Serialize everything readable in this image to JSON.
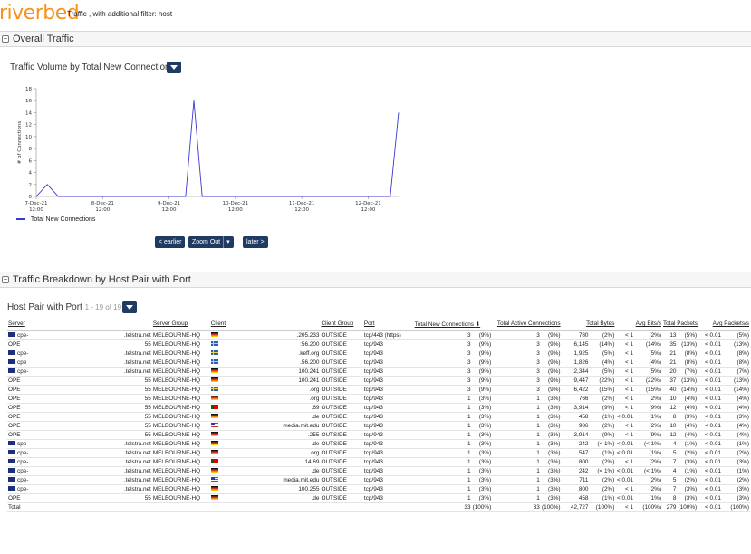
{
  "header": {
    "logo": "riverbed",
    "title": "Traffic , with additional filter: host"
  },
  "section1": {
    "toggle": "−",
    "title": "Overall Traffic"
  },
  "chart_panel": {
    "title": "Traffic Volume by Total New Connections",
    "nav": {
      "earlier": "< earlier",
      "zoom_out": "Zoom Out",
      "later": "later >"
    }
  },
  "chart_data": {
    "type": "line",
    "ylabel": "# of Connections",
    "ylim": [
      0,
      18
    ],
    "yticks": [
      0,
      2,
      4,
      6,
      8,
      10,
      12,
      14,
      16,
      18
    ],
    "xlim": [
      "2021-12-07 12:00",
      "2021-12-12 23:00"
    ],
    "xticks": [
      {
        "value": "2021-12-07 12:00",
        "line1": "7-Dec-21",
        "line2": "12:00"
      },
      {
        "value": "2021-12-08 12:00",
        "line1": "8-Dec-21",
        "line2": "12:00"
      },
      {
        "value": "2021-12-09 12:00",
        "line1": "9-Dec-21",
        "line2": "12:00"
      },
      {
        "value": "2021-12-10 12:00",
        "line1": "10-Dec-21",
        "line2": "12:00"
      },
      {
        "value": "2021-12-11 12:00",
        "line1": "11-Dec-21",
        "line2": "12:00"
      },
      {
        "value": "2021-12-12 12:00",
        "line1": "12-Dec-21",
        "line2": "12:00"
      }
    ],
    "series": [
      {
        "name": "Total New Connections",
        "color": "#3a3acc",
        "points": [
          {
            "x": "2021-12-07 12:00",
            "y": 0
          },
          {
            "x": "2021-12-07 16:00",
            "y": 2
          },
          {
            "x": "2021-12-07 20:00",
            "y": 0
          },
          {
            "x": "2021-12-09 18:00",
            "y": 0
          },
          {
            "x": "2021-12-09 21:00",
            "y": 16
          },
          {
            "x": "2021-12-10 00:00",
            "y": 0
          },
          {
            "x": "2021-12-12 20:00",
            "y": 0
          },
          {
            "x": "2021-12-12 23:00",
            "y": 14
          }
        ]
      }
    ],
    "legend": "bottom-left",
    "grid": false
  },
  "section2": {
    "toggle": "−",
    "title": "Traffic Breakdown by Host Pair with Port"
  },
  "table_panel": {
    "title": "Host Pair with Port",
    "count": "1 - 19 of 19"
  },
  "table": {
    "columns": [
      "Server",
      "Server Group",
      "Client",
      "Client Group",
      "Port",
      "Total New Connections",
      "Total Active Connections",
      "Total Bytes",
      "Avg Bits/s",
      "Total Packets",
      "Avg Packets/s"
    ],
    "rows": [
      {
        "srv_flag": "au",
        "srv_a": "cpe-",
        "srv_b": ".telstra.net",
        "sgroup": "MELBOURNE-HQ",
        "cli_flag": "de",
        "cli": ".205.233",
        "cgroup": "OUTSIDE",
        "port": "tcp/443 (https)",
        "tnc": "3",
        "tnc_p": "(9%)",
        "tac": "3",
        "tac_p": "(9%)",
        "tb": "780",
        "tb_p": "(2%)",
        "abs": "< 1",
        "abs_p": "(2%)",
        "tp": "13",
        "tp_p": "(5%)",
        "aps": "< 0.01",
        "aps_p": "(5%)"
      },
      {
        "srv_flag": "",
        "srv_a": "OPE",
        "srv_b": "55",
        "sgroup": "MELBOURNE-HQ",
        "cli_flag": "se",
        "cli": ":56.200",
        "cgroup": "OUTSIDE",
        "port": "tcp/943",
        "tnc": "3",
        "tnc_p": "(9%)",
        "tac": "3",
        "tac_p": "(9%)",
        "tb": "6,145",
        "tb_p": "(14%)",
        "abs": "< 1",
        "abs_p": "(14%)",
        "tp": "35",
        "tp_p": "(13%)",
        "aps": "< 0.01",
        "aps_p": "(13%)"
      },
      {
        "srv_flag": "au",
        "srv_a": "cpe-",
        "srv_b": ".telstra.net",
        "sgroup": "MELBOURNE-HQ",
        "cli_flag": "se",
        "cli": ".keff.org",
        "cgroup": "OUTSIDE",
        "port": "tcp/943",
        "tnc": "3",
        "tnc_p": "(9%)",
        "tac": "3",
        "tac_p": "(9%)",
        "tb": "1,925",
        "tb_p": "(5%)",
        "abs": "< 1",
        "abs_p": "(5%)",
        "tp": "21",
        "tp_p": "(8%)",
        "aps": "< 0.01",
        "aps_p": "(8%)"
      },
      {
        "srv_flag": "au",
        "srv_a": "cpe",
        "srv_b": ".telstra.net",
        "sgroup": "MELBOURNE-HQ",
        "cli_flag": "se",
        "cli": ".56.200",
        "cgroup": "OUTSIDE",
        "port": "tcp/943",
        "tnc": "3",
        "tnc_p": "(9%)",
        "tac": "3",
        "tac_p": "(9%)",
        "tb": "1,826",
        "tb_p": "(4%)",
        "abs": "< 1",
        "abs_p": "(4%)",
        "tp": "21",
        "tp_p": "(8%)",
        "aps": "< 0.01",
        "aps_p": "(8%)"
      },
      {
        "srv_flag": "au",
        "srv_a": "cpe-",
        "srv_b": ".telstra.net",
        "sgroup": "MELBOURNE-HQ",
        "cli_flag": "de",
        "cli": "100.241",
        "cgroup": "OUTSIDE",
        "port": "tcp/943",
        "tnc": "3",
        "tnc_p": "(9%)",
        "tac": "3",
        "tac_p": "(9%)",
        "tb": "2,344",
        "tb_p": "(5%)",
        "abs": "< 1",
        "abs_p": "(5%)",
        "tp": "20",
        "tp_p": "(7%)",
        "aps": "< 0.01",
        "aps_p": "(7%)"
      },
      {
        "srv_flag": "",
        "srv_a": "OPE",
        "srv_b": "55",
        "sgroup": "MELBOURNE-HQ",
        "cli_flag": "de",
        "cli": "100.241",
        "cgroup": "OUTSIDE",
        "port": "tcp/943",
        "tnc": "3",
        "tnc_p": "(9%)",
        "tac": "3",
        "tac_p": "(9%)",
        "tb": "9,447",
        "tb_p": "(22%)",
        "abs": "< 1",
        "abs_p": "(22%)",
        "tp": "37",
        "tp_p": "(13%)",
        "aps": "< 0.01",
        "aps_p": "(13%)"
      },
      {
        "srv_flag": "",
        "srv_a": "OPE",
        "srv_b": "55",
        "sgroup": "MELBOURNE-HQ",
        "cli_flag": "se",
        "cli": ".org",
        "cgroup": "OUTSIDE",
        "port": "tcp/943",
        "tnc": "3",
        "tnc_p": "(9%)",
        "tac": "3",
        "tac_p": "(9%)",
        "tb": "6,422",
        "tb_p": "(15%)",
        "abs": "< 1",
        "abs_p": "(15%)",
        "tp": "40",
        "tp_p": "(14%)",
        "aps": "< 0.01",
        "aps_p": "(14%)"
      },
      {
        "srv_flag": "",
        "srv_a": "OPE",
        "srv_b": "55",
        "sgroup": "MELBOURNE-HQ",
        "cli_flag": "de",
        "cli": ".org",
        "cgroup": "OUTSIDE",
        "port": "tcp/943",
        "tnc": "1",
        "tnc_p": "(3%)",
        "tac": "1",
        "tac_p": "(3%)",
        "tb": "766",
        "tb_p": "(2%)",
        "abs": "< 1",
        "abs_p": "(2%)",
        "tp": "10",
        "tp_p": "(4%)",
        "aps": "< 0.01",
        "aps_p": "(4%)"
      },
      {
        "srv_flag": "",
        "srv_a": "OPE",
        "srv_b": "55",
        "sgroup": "MELBOURNE-HQ",
        "cli_flag": "pt",
        "cli": ".69",
        "cgroup": "OUTSIDE",
        "port": "tcp/943",
        "tnc": "1",
        "tnc_p": "(3%)",
        "tac": "1",
        "tac_p": "(3%)",
        "tb": "3,914",
        "tb_p": "(9%)",
        "abs": "< 1",
        "abs_p": "(9%)",
        "tp": "12",
        "tp_p": "(4%)",
        "aps": "< 0.01",
        "aps_p": "(4%)"
      },
      {
        "srv_flag": "",
        "srv_a": "OPE",
        "srv_b": "55",
        "sgroup": "MELBOURNE-HQ",
        "cli_flag": "de",
        "cli": ".de",
        "cgroup": "OUTSIDE",
        "port": "tcp/943",
        "tnc": "1",
        "tnc_p": "(3%)",
        "tac": "1",
        "tac_p": "(3%)",
        "tb": "458",
        "tb_p": "(1%)",
        "abs": "< 0.01",
        "abs_p": "(1%)",
        "tp": "8",
        "tp_p": "(3%)",
        "aps": "< 0.01",
        "aps_p": "(3%)"
      },
      {
        "srv_flag": "",
        "srv_a": "OPE",
        "srv_b": "55",
        "sgroup": "MELBOURNE-HQ",
        "cli_flag": "us",
        "cli": "media.mit.edu",
        "cgroup": "OUTSIDE",
        "port": "tcp/943",
        "tnc": "1",
        "tnc_p": "(3%)",
        "tac": "1",
        "tac_p": "(3%)",
        "tb": "986",
        "tb_p": "(2%)",
        "abs": "< 1",
        "abs_p": "(2%)",
        "tp": "10",
        "tp_p": "(4%)",
        "aps": "< 0.01",
        "aps_p": "(4%)"
      },
      {
        "srv_flag": "",
        "srv_a": "OPE",
        "srv_b": "55",
        "sgroup": "MELBOURNE-HQ",
        "cli_flag": "de",
        "cli": ".255",
        "cgroup": "OUTSIDE",
        "port": "tcp/943",
        "tnc": "1",
        "tnc_p": "(3%)",
        "tac": "1",
        "tac_p": "(3%)",
        "tb": "3,914",
        "tb_p": "(9%)",
        "abs": "< 1",
        "abs_p": "(9%)",
        "tp": "12",
        "tp_p": "(4%)",
        "aps": "< 0.01",
        "aps_p": "(4%)"
      },
      {
        "srv_flag": "au",
        "srv_a": "cpe-",
        "srv_b": ".telstra.net",
        "sgroup": "MELBOURNE-HQ",
        "cli_flag": "de",
        "cli": ".de",
        "cgroup": "OUTSIDE",
        "port": "tcp/943",
        "tnc": "1",
        "tnc_p": "(3%)",
        "tac": "1",
        "tac_p": "(3%)",
        "tb": "242",
        "tb_p": "(< 1%)",
        "abs": "< 0.01",
        "abs_p": "(< 1%)",
        "tp": "4",
        "tp_p": "(1%)",
        "aps": "< 0.01",
        "aps_p": "(1%)"
      },
      {
        "srv_flag": "au",
        "srv_a": "cpe-",
        "srv_b": ".telstra.net",
        "sgroup": "MELBOURNE-HQ",
        "cli_flag": "de",
        "cli": "org",
        "cgroup": "OUTSIDE",
        "port": "tcp/943",
        "tnc": "1",
        "tnc_p": "(3%)",
        "tac": "1",
        "tac_p": "(3%)",
        "tb": "547",
        "tb_p": "(1%)",
        "abs": "< 0.01",
        "abs_p": "(1%)",
        "tp": "5",
        "tp_p": "(2%)",
        "aps": "< 0.01",
        "aps_p": "(2%)"
      },
      {
        "srv_flag": "au",
        "srv_a": "cpe-",
        "srv_b": ".telstra.net",
        "sgroup": "MELBOURNE-HQ",
        "cli_flag": "pt",
        "cli": "14.69",
        "cgroup": "OUTSIDE",
        "port": "tcp/943",
        "tnc": "1",
        "tnc_p": "(3%)",
        "tac": "1",
        "tac_p": "(3%)",
        "tb": "800",
        "tb_p": "(2%)",
        "abs": "< 1",
        "abs_p": "(2%)",
        "tp": "7",
        "tp_p": "(3%)",
        "aps": "< 0.01",
        "aps_p": "(3%)"
      },
      {
        "srv_flag": "au",
        "srv_a": "cpe-",
        "srv_b": ".telstra.net",
        "sgroup": "MELBOURNE-HQ",
        "cli_flag": "de",
        "cli": ".de",
        "cgroup": "OUTSIDE",
        "port": "tcp/943",
        "tnc": "1",
        "tnc_p": "(3%)",
        "tac": "1",
        "tac_p": "(3%)",
        "tb": "242",
        "tb_p": "(< 1%)",
        "abs": "< 0.01",
        "abs_p": "(< 1%)",
        "tp": "4",
        "tp_p": "(1%)",
        "aps": "< 0.01",
        "aps_p": "(1%)"
      },
      {
        "srv_flag": "au",
        "srv_a": "cpe-",
        "srv_b": ".telstra.net",
        "sgroup": "MELBOURNE-HQ",
        "cli_flag": "us",
        "cli": "media.mit.edu",
        "cgroup": "OUTSIDE",
        "port": "tcp/943",
        "tnc": "1",
        "tnc_p": "(3%)",
        "tac": "1",
        "tac_p": "(3%)",
        "tb": "711",
        "tb_p": "(2%)",
        "abs": "< 0.01",
        "abs_p": "(2%)",
        "tp": "5",
        "tp_p": "(2%)",
        "aps": "< 0.01",
        "aps_p": "(2%)"
      },
      {
        "srv_flag": "au",
        "srv_a": "cpe-",
        "srv_b": ".telstra.net",
        "sgroup": "MELBOURNE-HQ",
        "cli_flag": "de",
        "cli": "100.255",
        "cgroup": "OUTSIDE",
        "port": "tcp/943",
        "tnc": "1",
        "tnc_p": "(3%)",
        "tac": "1",
        "tac_p": "(3%)",
        "tb": "800",
        "tb_p": "(2%)",
        "abs": "< 1",
        "abs_p": "(2%)",
        "tp": "7",
        "tp_p": "(3%)",
        "aps": "< 0.01",
        "aps_p": "(3%)"
      },
      {
        "srv_flag": "",
        "srv_a": "OPE",
        "srv_b": "55",
        "sgroup": "MELBOURNE-HQ",
        "cli_flag": "de",
        "cli": ".de",
        "cgroup": "OUTSIDE",
        "port": "tcp/943",
        "tnc": "1",
        "tnc_p": "(3%)",
        "tac": "1",
        "tac_p": "(3%)",
        "tb": "458",
        "tb_p": "(1%)",
        "abs": "< 0.01",
        "abs_p": "(1%)",
        "tp": "8",
        "tp_p": "(3%)",
        "aps": "< 0.01",
        "aps_p": "(3%)"
      }
    ],
    "total": {
      "label": "Total",
      "tnc": "33",
      "tnc_p": "(100%)",
      "tac": "33",
      "tac_p": "(100%)",
      "tb": "42,727",
      "tb_p": "(100%)",
      "abs": "< 1",
      "abs_p": "(100%)",
      "tp": "279",
      "tp_p": "(100%)",
      "aps": "< 0.01",
      "aps_p": "(100%)"
    }
  }
}
